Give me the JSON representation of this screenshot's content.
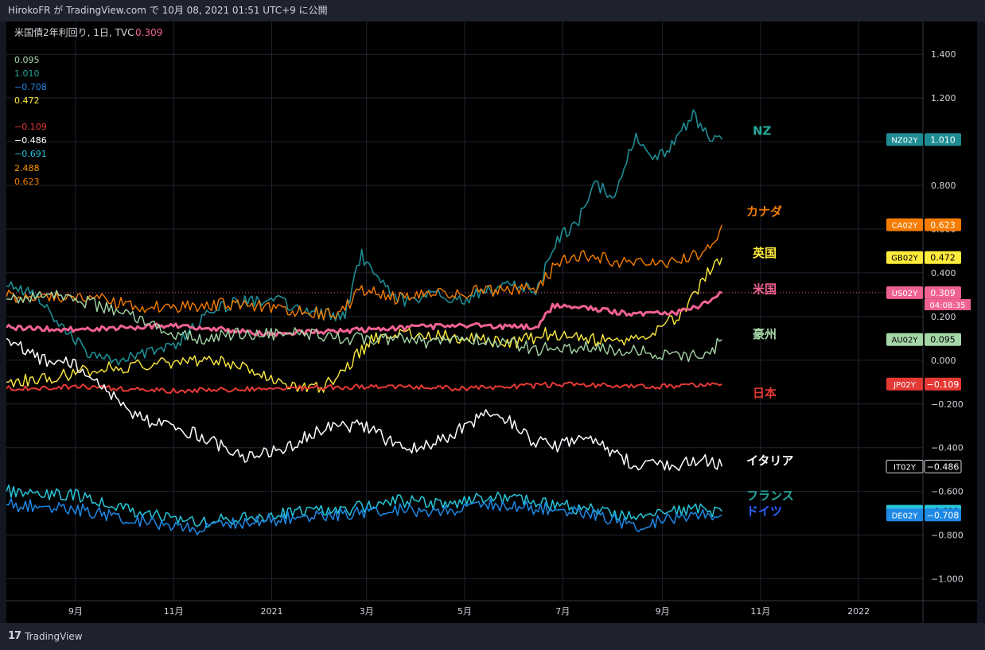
{
  "header": {
    "text": "HirokoFR が TradingView.com で 10月 08, 2021 01:51 UTC+9 に公開"
  },
  "footer": {
    "brand": "TradingView",
    "logo_glyph": "17"
  },
  "chart_data": {
    "type": "line",
    "title": "米国債2年利回り, 1日, TVC",
    "title_value": "0.309",
    "y_ticks": [
      "1.400",
      "1.200",
      "1.000",
      "0.800",
      "0.600",
      "0.400",
      "0.200",
      "0.000",
      "−0.200",
      "−0.400",
      "−0.600",
      "−0.800",
      "−1.000"
    ],
    "y_tick_values": [
      1.4,
      1.2,
      1.0,
      0.8,
      0.6,
      0.4,
      0.2,
      0.0,
      -0.2,
      -0.4,
      -0.6,
      -0.8,
      -1.0
    ],
    "ylim": [
      -1.1,
      1.55
    ],
    "x_ticks": [
      "9月",
      "11月",
      "2021",
      "3月",
      "5月",
      "7月",
      "9月",
      "11月",
      "2022"
    ],
    "x_tick_dates": [
      "2020-09-01",
      "2020-11-01",
      "2021-01-01",
      "2021-03-01",
      "2021-05-01",
      "2021-07-01",
      "2021-09-01",
      "2021-11-01",
      "2022-01-01"
    ],
    "xlim": [
      "2020-07-20",
      "2022-02-10"
    ],
    "last_date": "2021-10-08",
    "grid": true,
    "legend_values": [
      {
        "value": "0.095",
        "color": "#a5d6a7"
      },
      {
        "value": "1.010",
        "color": "#26a69a"
      },
      {
        "value": "−0.708",
        "color": "#1e88e5"
      },
      {
        "value": "0.472",
        "color": "#ffeb3b"
      },
      {
        "value": "−0.109",
        "color": "#e53935"
      },
      {
        "value": "−0.486",
        "color": "#ffffff"
      },
      {
        "value": "−0.691",
        "color": "#26c6da"
      },
      {
        "value": "2.488",
        "color": "#ff9800"
      },
      {
        "value": "0.623",
        "color": "#f57c00"
      }
    ],
    "countdown": "04:08:35",
    "series": [
      {
        "id": "nz",
        "name": "NZ",
        "symbol": "NZ02Y",
        "last": "1.010",
        "color": "#1e8c93",
        "label_color": "#26a69a",
        "width": 1.6,
        "label_y": 1.05,
        "tag_bg": "#1e8c93",
        "tag_fg": "#ffffff",
        "dates": [
          "2020-07-20",
          "2020-08-05",
          "2020-08-25",
          "2020-09-10",
          "2020-10-01",
          "2020-10-15",
          "2020-11-01",
          "2020-11-20",
          "2020-12-10",
          "2021-01-01",
          "2021-01-25",
          "2021-02-15",
          "2021-02-26",
          "2021-03-10",
          "2021-03-25",
          "2021-04-10",
          "2021-05-01",
          "2021-05-25",
          "2021-06-15",
          "2021-06-28",
          "2021-07-10",
          "2021-07-20",
          "2021-08-01",
          "2021-08-15",
          "2021-08-25",
          "2021-09-05",
          "2021-09-20",
          "2021-09-30",
          "2021-10-08"
        ],
        "values": [
          0.34,
          0.32,
          0.15,
          0.02,
          0.0,
          0.04,
          0.06,
          0.2,
          0.27,
          0.28,
          0.22,
          0.2,
          0.48,
          0.35,
          0.26,
          0.3,
          0.28,
          0.34,
          0.32,
          0.56,
          0.62,
          0.82,
          0.74,
          1.02,
          0.92,
          0.96,
          1.12,
          1.03,
          1.01
        ]
      },
      {
        "id": "ca",
        "name": "カナダ",
        "symbol": "CA02Y",
        "last": "0.623",
        "color": "#f57c00",
        "label_color": "#f57c00",
        "width": 1.4,
        "label_y": 0.68,
        "tag_bg": "#f57c00",
        "tag_fg": "#ffffff",
        "dates": [
          "2020-07-20",
          "2020-08-15",
          "2020-09-15",
          "2020-10-15",
          "2020-11-15",
          "2020-12-15",
          "2021-01-15",
          "2021-02-10",
          "2021-02-28",
          "2021-03-20",
          "2021-04-15",
          "2021-05-15",
          "2021-06-15",
          "2021-06-28",
          "2021-07-15",
          "2021-08-15",
          "2021-09-10",
          "2021-09-25",
          "2021-10-05",
          "2021-10-08"
        ],
        "values": [
          0.29,
          0.3,
          0.28,
          0.24,
          0.25,
          0.26,
          0.22,
          0.21,
          0.33,
          0.28,
          0.3,
          0.32,
          0.32,
          0.45,
          0.48,
          0.44,
          0.45,
          0.49,
          0.57,
          0.62
        ]
      },
      {
        "id": "gb",
        "name": "英国",
        "symbol": "GB02Y",
        "last": "0.472",
        "color": "#ffeb3b",
        "label_color": "#ffeb3b",
        "width": 1.4,
        "label_y": 0.49,
        "tag_bg": "#ffeb3b",
        "tag_fg": "#000000",
        "dates": [
          "2020-07-20",
          "2020-08-15",
          "2020-09-15",
          "2020-10-15",
          "2020-11-15",
          "2020-12-15",
          "2021-01-10",
          "2021-02-01",
          "2021-02-15",
          "2021-03-05",
          "2021-04-01",
          "2021-05-01",
          "2021-06-01",
          "2021-06-20",
          "2021-07-15",
          "2021-08-10",
          "2021-09-01",
          "2021-09-15",
          "2021-09-28",
          "2021-10-08"
        ],
        "values": [
          -0.1,
          -0.08,
          -0.04,
          -0.02,
          0.0,
          -0.02,
          -0.12,
          -0.13,
          -0.04,
          0.1,
          0.12,
          0.1,
          0.08,
          0.12,
          0.1,
          0.08,
          0.16,
          0.22,
          0.39,
          0.47
        ]
      },
      {
        "id": "us",
        "name": "米国",
        "symbol": "US02Y",
        "last": "0.309",
        "color": "#f06292",
        "label_color": "#f06292",
        "width": 3,
        "label_y": 0.325,
        "tag_bg": "#f06292",
        "tag_fg": "#ffffff",
        "dates": [
          "2020-07-20",
          "2020-09-01",
          "2020-11-01",
          "2021-01-01",
          "2021-03-01",
          "2021-05-01",
          "2021-06-15",
          "2021-06-25",
          "2021-07-15",
          "2021-08-15",
          "2021-09-10",
          "2021-09-25",
          "2021-10-08"
        ],
        "values": [
          0.15,
          0.14,
          0.16,
          0.12,
          0.14,
          0.16,
          0.15,
          0.25,
          0.24,
          0.21,
          0.22,
          0.25,
          0.309
        ]
      },
      {
        "id": "au",
        "name": "豪州",
        "symbol": "AU02Y",
        "last": "0.095",
        "color": "#a5d6a7",
        "label_color": "#a5d6a7",
        "width": 1.4,
        "label_y": 0.12,
        "tag_bg": "#a5d6a7",
        "tag_fg": "#000000",
        "dates": [
          "2020-07-20",
          "2020-08-20",
          "2020-09-10",
          "2020-10-01",
          "2020-10-20",
          "2020-11-15",
          "2020-12-15",
          "2021-01-15",
          "2021-02-15",
          "2021-03-15",
          "2021-04-15",
          "2021-05-15",
          "2021-06-15",
          "2021-07-15",
          "2021-08-15",
          "2021-09-15",
          "2021-10-01",
          "2021-10-08"
        ],
        "values": [
          0.28,
          0.3,
          0.26,
          0.22,
          0.15,
          0.1,
          0.12,
          0.12,
          0.1,
          0.1,
          0.08,
          0.1,
          0.05,
          0.06,
          0.04,
          0.02,
          0.04,
          0.095
        ]
      },
      {
        "id": "jp",
        "name": "日本",
        "symbol": "JP02Y",
        "last": "−0.109",
        "color": "#e53935",
        "label_color": "#e53935",
        "width": 2,
        "label_y": -0.15,
        "tag_bg": "#e53935",
        "tag_fg": "#ffffff",
        "dates": [
          "2020-07-20",
          "2020-09-01",
          "2020-11-01",
          "2021-01-01",
          "2021-03-01",
          "2021-05-01",
          "2021-07-01",
          "2021-09-01",
          "2021-10-08"
        ],
        "values": [
          -0.13,
          -0.12,
          -0.14,
          -0.13,
          -0.12,
          -0.13,
          -0.11,
          -0.12,
          -0.109
        ]
      },
      {
        "id": "it",
        "name": "イタリア",
        "symbol": "IT02Y",
        "last": "−0.486",
        "color": "#ffffff",
        "label_color": "#ffffff",
        "width": 1.5,
        "label_y": -0.46,
        "tag_bg": "#000000",
        "tag_fg": "#ffffff",
        "dates": [
          "2020-07-20",
          "2020-08-10",
          "2020-09-01",
          "2020-09-20",
          "2020-10-10",
          "2020-10-25",
          "2020-11-15",
          "2020-12-15",
          "2021-01-10",
          "2021-02-05",
          "2021-03-01",
          "2021-03-25",
          "2021-04-20",
          "2021-05-20",
          "2021-06-10",
          "2021-06-25",
          "2021-07-15",
          "2021-08-15",
          "2021-09-10",
          "2021-09-25",
          "2021-10-08"
        ],
        "values": [
          0.1,
          0.0,
          -0.02,
          -0.14,
          -0.26,
          -0.3,
          -0.34,
          -0.44,
          -0.4,
          -0.3,
          -0.3,
          -0.42,
          -0.35,
          -0.22,
          -0.36,
          -0.4,
          -0.34,
          -0.48,
          -0.48,
          -0.45,
          -0.486
        ]
      },
      {
        "id": "fr",
        "name": "フランス",
        "symbol": "FR02Y",
        "last": "−0.691",
        "color": "#26c6da",
        "label_color": "#26a69a",
        "width": 1.5,
        "label_y": -0.62,
        "tag_bg": "#26c6da",
        "tag_fg": "#000000",
        "dates": [
          "2020-07-20",
          "2020-09-01",
          "2020-10-15",
          "2020-11-15",
          "2020-12-15",
          "2021-01-15",
          "2021-02-20",
          "2021-03-15",
          "2021-04-15",
          "2021-05-20",
          "2021-06-20",
          "2021-07-20",
          "2021-08-15",
          "2021-09-10",
          "2021-10-08"
        ],
        "values": [
          -0.6,
          -0.62,
          -0.7,
          -0.74,
          -0.72,
          -0.7,
          -0.68,
          -0.64,
          -0.66,
          -0.62,
          -0.66,
          -0.68,
          -0.72,
          -0.68,
          -0.691
        ]
      },
      {
        "id": "de",
        "name": "ドイツ",
        "symbol": "DE02Y",
        "last": "−0.708",
        "color": "#1e88e5",
        "label_color": "#2962ff",
        "width": 1.5,
        "label_y": -0.69,
        "tag_bg": "#1e88e5",
        "tag_fg": "#ffffff",
        "dates": [
          "2020-07-20",
          "2020-09-01",
          "2020-10-15",
          "2020-11-15",
          "2020-12-15",
          "2021-01-15",
          "2021-02-20",
          "2021-03-15",
          "2021-04-15",
          "2021-05-20",
          "2021-06-20",
          "2021-07-20",
          "2021-08-15",
          "2021-09-10",
          "2021-10-08"
        ],
        "values": [
          -0.66,
          -0.68,
          -0.74,
          -0.78,
          -0.74,
          -0.72,
          -0.7,
          -0.68,
          -0.7,
          -0.66,
          -0.68,
          -0.7,
          -0.76,
          -0.72,
          -0.708
        ]
      }
    ]
  }
}
